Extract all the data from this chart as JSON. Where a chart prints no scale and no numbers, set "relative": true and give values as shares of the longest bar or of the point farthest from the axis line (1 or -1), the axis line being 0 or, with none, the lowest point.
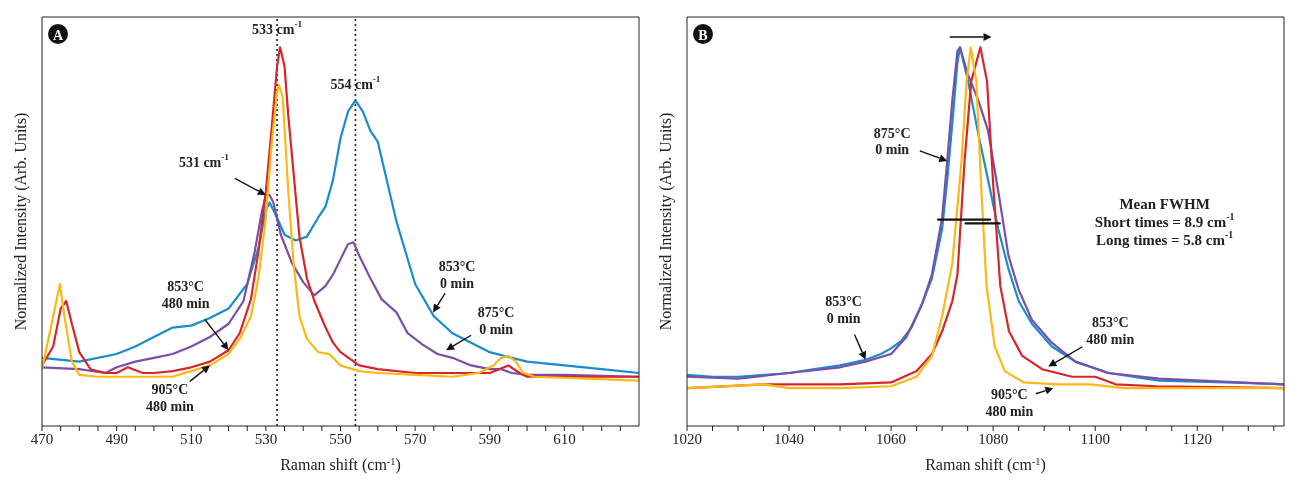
{
  "chart_data": [
    {
      "type": "line",
      "relative": true,
      "xlabel": "Raman shift (cm$^{-1}$)",
      "ylabel": "Normalized Intensity (Arb. Units)",
      "xlim": [
        470,
        630
      ],
      "xticks": [
        470,
        {
          "value": 475,
          "label": null
        },
        {
          "value": 480,
          "label": null
        },
        {
          "value": 485,
          "label": null
        },
        490,
        {
          "value": 495,
          "label": null
        },
        {
          "value": 500,
          "label": null
        },
        {
          "value": 505,
          "label": null
        },
        510,
        {
          "value": 515,
          "label": null
        },
        {
          "value": 520,
          "label": null
        },
        {
          "value": 525,
          "label": null
        },
        530,
        {
          "value": 535,
          "label": null
        },
        {
          "value": 540,
          "label": null
        },
        {
          "value": 545,
          "label": null
        },
        550,
        {
          "value": 555,
          "label": null
        },
        {
          "value": 560,
          "label": null
        },
        {
          "value": 565,
          "label": null
        },
        570,
        {
          "value": 575,
          "label": null
        },
        {
          "value": 580,
          "label": null
        },
        {
          "value": 585,
          "label": null
        },
        590,
        {
          "value": 595,
          "label": null
        },
        {
          "value": 600,
          "label": null
        },
        {
          "value": 605,
          "label": null
        },
        610,
        {
          "value": 615,
          "label": null
        },
        {
          "value": 620,
          "label": null
        },
        {
          "value": 625,
          "label": null
        }
      ],
      "ref_lines": [
        {
          "axis": "x",
          "value": 533,
          "color": "#222222",
          "line_style": "dotted"
        },
        {
          "axis": "x",
          "value": 554,
          "color": "#222222",
          "line_style": "dotted"
        }
      ],
      "annotations": [
        "A",
        {
          "text": "533 cm$^{-1}$",
          "x": 533,
          "y": 1
        },
        {
          "text": "554 cm$^{-1}$",
          "x": 554,
          "y": 0.86
        },
        {
          "text": "531 cm$^{-1}$",
          "x": 530,
          "y": 0.61
        },
        {
          "text": "853°C\n480 min",
          "x": 520,
          "y": 0.2
        },
        {
          "text": "905°C\n480 min",
          "x": 515,
          "y": 0.16
        },
        {
          "text": "853°C\n0 min",
          "x": 574.8,
          "y": 0.3
        },
        {
          "text": "875°C\n0 min",
          "x": 578.3,
          "y": 0.2
        }
      ],
      "series": [
        {
          "color": "#1a8ccc",
          "x": [
            470,
            480,
            490,
            495,
            500,
            505,
            510,
            515,
            520,
            525,
            528,
            530,
            531,
            533,
            535,
            538,
            541,
            544,
            546,
            548,
            550,
            552,
            554,
            556,
            558,
            560,
            565,
            570,
            575,
            580,
            590,
            600,
            610,
            620,
            630
          ],
          "values": [
            0.18,
            0.17,
            0.19,
            0.21,
            0.235,
            0.26,
            0.265,
            0.285,
            0.31,
            0.375,
            0.47,
            0.57,
            0.59,
            0.55,
            0.505,
            0.49,
            0.5,
            0.55,
            0.58,
            0.65,
            0.76,
            0.83,
            0.86,
            0.83,
            0.78,
            0.75,
            0.54,
            0.375,
            0.29,
            0.245,
            0.195,
            0.17,
            0.16,
            0.15,
            0.14
          ]
        },
        {
          "color": "#7b4fa8",
          "x": [
            470,
            480,
            487,
            490,
            495,
            500,
            505,
            510,
            515,
            520,
            524,
            527,
            529,
            530,
            531,
            532,
            534,
            537,
            540,
            543,
            546,
            548,
            550,
            552,
            553.5,
            555,
            558,
            561,
            565,
            568,
            572,
            576,
            580,
            585,
            590,
            593,
            596,
            600,
            610,
            630
          ],
          "values": [
            0.155,
            0.15,
            0.14,
            0.155,
            0.17,
            0.18,
            0.19,
            0.21,
            0.235,
            0.27,
            0.33,
            0.46,
            0.57,
            0.61,
            0.61,
            0.59,
            0.505,
            0.43,
            0.38,
            0.345,
            0.37,
            0.4,
            0.44,
            0.48,
            0.485,
            0.45,
            0.39,
            0.335,
            0.3,
            0.245,
            0.215,
            0.19,
            0.18,
            0.16,
            0.15,
            0.15,
            0.14,
            0.135,
            0.135,
            0.13
          ]
        },
        {
          "color": "#d7262b",
          "x": [
            470,
            473,
            475,
            476.5,
            478,
            480,
            483,
            487,
            490,
            493,
            497,
            500,
            505,
            510,
            515,
            520,
            523,
            526,
            528,
            530,
            531.5,
            533,
            533.8,
            535,
            536,
            537.5,
            539,
            541,
            543,
            546,
            548,
            550,
            555,
            560,
            570,
            580,
            590,
            595,
            598,
            600,
            630
          ],
          "values": [
            0.16,
            0.21,
            0.31,
            0.33,
            0.27,
            0.195,
            0.15,
            0.14,
            0.14,
            0.155,
            0.14,
            0.14,
            0.145,
            0.155,
            0.17,
            0.2,
            0.245,
            0.335,
            0.46,
            0.62,
            0.78,
            0.95,
            1,
            0.95,
            0.82,
            0.66,
            0.5,
            0.39,
            0.33,
            0.26,
            0.22,
            0.195,
            0.16,
            0.15,
            0.14,
            0.14,
            0.14,
            0.16,
            0.14,
            0.13,
            0.13
          ]
        },
        {
          "color": "#fdb913",
          "x": [
            470,
            473,
            474.8,
            476,
            478,
            480,
            485,
            490,
            495,
            500,
            505,
            510,
            515,
            520,
            523,
            526,
            528,
            530,
            531.5,
            533,
            533.5,
            534.5,
            536,
            537.5,
            539,
            541,
            544,
            547,
            550,
            555,
            560,
            570,
            580,
            587,
            591,
            593,
            595,
            597,
            599,
            602,
            630
          ],
          "values": [
            0.15,
            0.29,
            0.375,
            0.29,
            0.17,
            0.135,
            0.13,
            0.13,
            0.13,
            0.13,
            0.13,
            0.145,
            0.16,
            0.19,
            0.23,
            0.29,
            0.39,
            0.55,
            0.74,
            0.88,
            0.9,
            0.87,
            0.62,
            0.42,
            0.29,
            0.23,
            0.195,
            0.19,
            0.16,
            0.145,
            0.14,
            0.135,
            0.13,
            0.14,
            0.16,
            0.18,
            0.185,
            0.17,
            0.14,
            0.13,
            0.12
          ]
        }
      ]
    },
    {
      "type": "line",
      "relative": true,
      "xlabel": "Raman shift (cm$^{-1}$)",
      "ylabel": "Normalized Intensity (Arb. Units)",
      "xlim": [
        1020,
        1137
      ],
      "xticks": [
        1020,
        {
          "value": 1025,
          "label": null
        },
        {
          "value": 1030,
          "label": null
        },
        {
          "value": 1035,
          "label": null
        },
        1040,
        {
          "value": 1045,
          "label": null
        },
        {
          "value": 1050,
          "label": null
        },
        {
          "value": 1055,
          "label": null
        },
        1060,
        {
          "value": 1065,
          "label": null
        },
        {
          "value": 1070,
          "label": null
        },
        {
          "value": 1075,
          "label": null
        },
        1080,
        {
          "value": 1085,
          "label": null
        },
        {
          "value": 1090,
          "label": null
        },
        {
          "value": 1095,
          "label": null
        },
        1100,
        {
          "value": 1105,
          "label": null
        },
        {
          "value": 1110,
          "label": null
        },
        {
          "value": 1115,
          "label": null
        },
        1120,
        {
          "value": 1125,
          "label": null
        },
        {
          "value": 1130,
          "label": null
        },
        {
          "value": 1135,
          "label": null
        }
      ],
      "annotations": [
        "B",
        "Mean FWHM\nShort times = 8.9 cm$^{-1}$\nLong times = 5.8 cm$^{-1}$",
        {
          "text": "875°C\n0 min",
          "x": 1071,
          "y": 0.7
        },
        {
          "text": "853°C\n0 min",
          "x": 1055,
          "y": 0.175
        },
        {
          "text": "853°C\n480 min",
          "x": 1090.8,
          "y": 0.157
        },
        {
          "text": "905°C\n480 min",
          "x": 1091.8,
          "y": 0.1
        }
      ],
      "series": [
        {
          "color": "#1a8ccc",
          "x": [
            1020,
            1025,
            1030,
            1040,
            1045,
            1050,
            1055,
            1058,
            1060,
            1062,
            1064,
            1066,
            1068,
            1070,
            1071,
            1072,
            1073,
            1073.5,
            1075.1,
            1077.1,
            1079,
            1081,
            1083,
            1085,
            1087.6,
            1091.5,
            1096.1,
            1102.6,
            1112.5,
            1125.6,
            1137
          ],
          "values": [
            0.135,
            0.13,
            0.13,
            0.14,
            0.15,
            0.16,
            0.175,
            0.19,
            0.205,
            0.225,
            0.26,
            0.32,
            0.39,
            0.52,
            0.65,
            0.8,
            0.96,
            1,
            0.91,
            0.77,
            0.65,
            0.52,
            0.415,
            0.33,
            0.27,
            0.21,
            0.17,
            0.14,
            0.12,
            0.115,
            0.11
          ]
        },
        {
          "color": "#7b4fa8",
          "x": [
            1020,
            1030,
            1040,
            1050,
            1055,
            1060,
            1063,
            1066,
            1068,
            1070,
            1071,
            1072,
            1073,
            1073.5,
            1075,
            1077.1,
            1079,
            1081,
            1083,
            1085,
            1087.6,
            1091.5,
            1096.1,
            1102.6,
            1112.5,
            1137
          ],
          "values": [
            0.13,
            0.125,
            0.14,
            0.155,
            0.17,
            0.19,
            0.235,
            0.32,
            0.4,
            0.55,
            0.7,
            0.86,
            0.99,
            1,
            0.93,
            0.86,
            0.78,
            0.62,
            0.45,
            0.36,
            0.28,
            0.22,
            0.17,
            0.14,
            0.125,
            0.11
          ]
        },
        {
          "color": "#d7262b",
          "x": [
            1020,
            1035,
            1040,
            1050,
            1060,
            1065,
            1068,
            1070,
            1072,
            1073,
            1074.4,
            1075.7,
            1077.5,
            1078.8,
            1080.1,
            1081.4,
            1083.1,
            1085.7,
            1089.6,
            1095.5,
            1100,
            1104,
            1112,
            1137
          ],
          "values": [
            0.1,
            0.11,
            0.11,
            0.11,
            0.115,
            0.145,
            0.19,
            0.25,
            0.33,
            0.4,
            0.7,
            0.91,
            1,
            0.91,
            0.62,
            0.37,
            0.25,
            0.185,
            0.15,
            0.13,
            0.13,
            0.11,
            0.105,
            0.1
          ]
        },
        {
          "color": "#fdb913",
          "x": [
            1020,
            1035,
            1040,
            1050,
            1060,
            1065,
            1068,
            1070,
            1072,
            1073,
            1073.8,
            1074.8,
            1075.6,
            1076.7,
            1077.7,
            1078.7,
            1080.3,
            1082.3,
            1086,
            1092.6,
            1099,
            1105.6,
            1137
          ],
          "values": [
            0.1,
            0.11,
            0.1,
            0.1,
            0.105,
            0.13,
            0.185,
            0.29,
            0.43,
            0.58,
            0.7,
            0.91,
            1,
            0.91,
            0.62,
            0.37,
            0.21,
            0.145,
            0.115,
            0.11,
            0.11,
            0.1,
            0.1
          ]
        },
        {
          "color": "#111111",
          "x": [
            1069.2,
            1079.4
          ],
          "values": [
            0.545,
            0.545
          ]
        },
        {
          "color": "#111111",
          "x": [
            1074.6,
            1081.3
          ],
          "values": [
            0.535,
            0.535
          ]
        }
      ]
    }
  ]
}
